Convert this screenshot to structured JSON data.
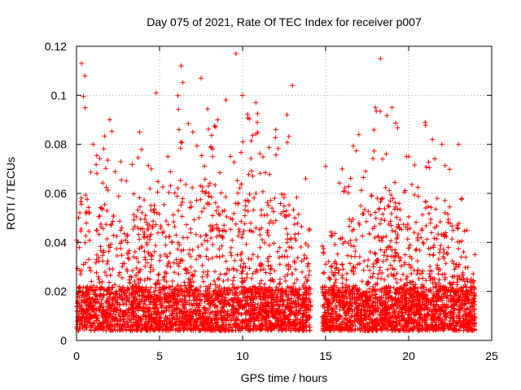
{
  "chart_data": {
    "type": "scatter",
    "title": "Day 075 of 2021, Rate Of TEC Index for receiver p007",
    "xlabel": "GPS time / hours",
    "ylabel": "ROTI / TECUs",
    "xlim": [
      0,
      25
    ],
    "ylim": [
      0,
      0.12
    ],
    "xticks": [
      0,
      5,
      10,
      15,
      20,
      25
    ],
    "xtick_labels": [
      "0",
      "5",
      "10",
      "15",
      "20",
      "25"
    ],
    "yticks": [
      0,
      0.02,
      0.04,
      0.06,
      0.08,
      0.1,
      0.12
    ],
    "ytick_labels": [
      "0",
      "0.02",
      "0.04",
      "0.06",
      "0.08",
      "0.1",
      "0.12"
    ],
    "grid": true,
    "marker": "+",
    "color": "#ff0000",
    "data_gap": [
      14.1,
      14.8
    ],
    "envelope": [
      {
        "x": 0.0,
        "ymax": 0.041
      },
      {
        "x": 0.3,
        "ymax": 0.113
      },
      {
        "x": 0.5,
        "ymax": 0.108
      },
      {
        "x": 1.0,
        "ymax": 0.08
      },
      {
        "x": 2.0,
        "ymax": 0.09
      },
      {
        "x": 3.0,
        "ymax": 0.065
      },
      {
        "x": 3.8,
        "ymax": 0.085
      },
      {
        "x": 4.5,
        "ymax": 0.07
      },
      {
        "x": 4.8,
        "ymax": 0.101
      },
      {
        "x": 5.5,
        "ymax": 0.075
      },
      {
        "x": 6.3,
        "ymax": 0.112
      },
      {
        "x": 7.0,
        "ymax": 0.085
      },
      {
        "x": 7.5,
        "ymax": 0.107
      },
      {
        "x": 8.5,
        "ymax": 0.09
      },
      {
        "x": 9.6,
        "ymax": 0.117
      },
      {
        "x": 10.0,
        "ymax": 0.1
      },
      {
        "x": 10.8,
        "ymax": 0.097
      },
      {
        "x": 12.0,
        "ymax": 0.086
      },
      {
        "x": 13.0,
        "ymax": 0.104
      },
      {
        "x": 13.8,
        "ymax": 0.066
      },
      {
        "x": 14.0,
        "ymax": 0.045
      },
      {
        "x": 15.0,
        "ymax": 0.071
      },
      {
        "x": 16.0,
        "ymax": 0.07
      },
      {
        "x": 17.0,
        "ymax": 0.084
      },
      {
        "x": 18.0,
        "ymax": 0.095
      },
      {
        "x": 18.3,
        "ymax": 0.115
      },
      {
        "x": 19.0,
        "ymax": 0.095
      },
      {
        "x": 20.0,
        "ymax": 0.075
      },
      {
        "x": 21.0,
        "ymax": 0.089
      },
      {
        "x": 22.0,
        "ymax": 0.08
      },
      {
        "x": 23.0,
        "ymax": 0.08
      },
      {
        "x": 23.5,
        "ymax": 0.045
      },
      {
        "x": 24.0,
        "ymax": 0.035
      }
    ]
  }
}
